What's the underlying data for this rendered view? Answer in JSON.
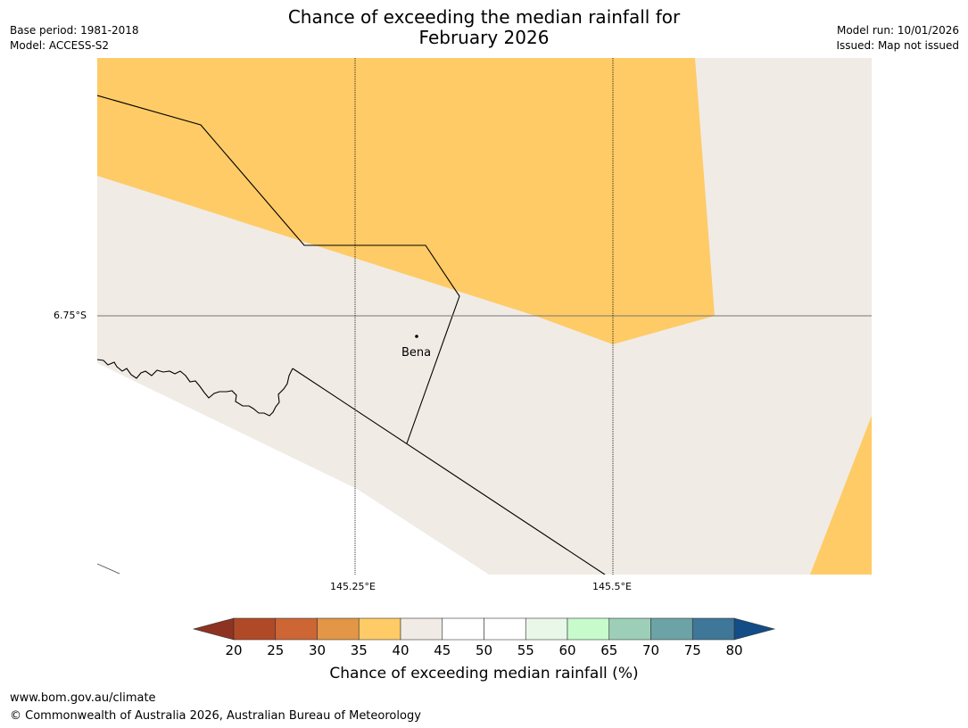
{
  "title": {
    "line1": "Chance of exceeding the median rainfall for",
    "line2": "February 2026"
  },
  "meta_left": {
    "base_period": "Base period: 1981-2018",
    "model": "Model: ACCESS-S2"
  },
  "meta_right": {
    "model_run": "Model run: 10/01/2026",
    "issued": "Issued: Map not issued"
  },
  "map": {
    "place_label": "Bena",
    "lat_label": "6.75°S",
    "lon_labels": [
      "145.25°E",
      "145.5°E"
    ],
    "colors": {
      "band_35_40": "#fecb66",
      "band_40_45": "#f0ebe5",
      "ocean": "#ffffff",
      "border": "#000000",
      "grid": "#777777"
    }
  },
  "colorbar": {
    "title": "Chance of exceeding median rainfall (%)",
    "ticks": [
      "20",
      "25",
      "30",
      "35",
      "40",
      "45",
      "50",
      "55",
      "60",
      "65",
      "70",
      "75",
      "80"
    ],
    "under_color": "#8e3322",
    "over_color": "#124d87",
    "colors": [
      "#b04a26",
      "#cd6535",
      "#e29646",
      "#fecb66",
      "#f0ebe5",
      "#ffffff",
      "#ffffff",
      "#e8f7e8",
      "#c7fbcb",
      "#9dcfb8",
      "#6ca3a6",
      "#3f7798"
    ]
  },
  "footer": {
    "url": "www.bom.gov.au/climate",
    "copyright": "© Commonwealth of Australia 2026, Australian Bureau of Meteorology"
  }
}
